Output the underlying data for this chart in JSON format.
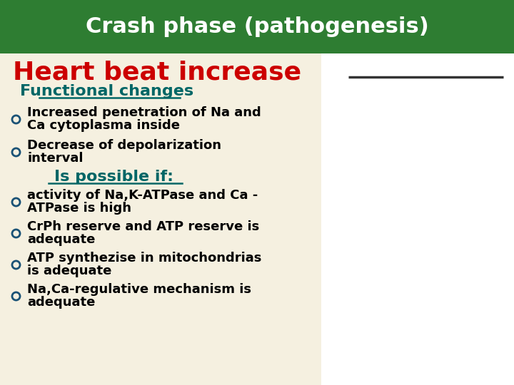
{
  "title": "Crash phase (pathogenesis)",
  "title_color": "#ffffff",
  "title_bg_color": "#2e7d32",
  "slide_bg_color": "#f5f0e0",
  "right_bg_color": "#ffffff",
  "heading": "Heart beat increase",
  "heading_color": "#cc0000",
  "subheading1": "Functional changes",
  "subheading1_color": "#006666",
  "bullet1_items": [
    "Increased penetration of Na and\nCa cytoplasma inside",
    "Decrease of depolarization\ninterval"
  ],
  "subheading2": "Is possible if:",
  "subheading2_color": "#006666",
  "bullet2_items": [
    "activity of Na,K-ATPase and Ca -\nATPase is high",
    "CrPh reserve and ATP reserve is\nadequate",
    "ATP synthezise in mitochondrias\nis adequate",
    "Na,Ca-regulative mechanism is\nadequate"
  ],
  "bullet_color": "#1a5276",
  "text_color": "#000000",
  "line_color": "#333333"
}
